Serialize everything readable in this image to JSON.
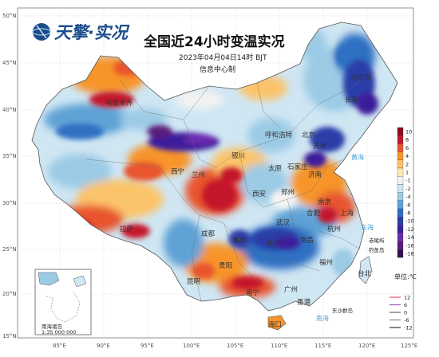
{
  "header": {
    "logo_text": "天擎·实况",
    "title": "全国近24小时变温实况",
    "datetime": "2023年04月04日14时 BJT",
    "issuer": "信息中心制"
  },
  "axes": {
    "lat_labels": [
      "50°N",
      "45°N",
      "40°N",
      "35°N",
      "30°N",
      "25°N",
      "20°N",
      "15°N"
    ],
    "lon_labels": [
      "85°E",
      "90°E",
      "95°E",
      "100°E",
      "105°E",
      "110°E",
      "115°E",
      "120°E",
      "125°E"
    ]
  },
  "legend": {
    "values": [
      "10",
      "8",
      "6",
      "4",
      "2",
      "1",
      "-1",
      "-2",
      "-4",
      "-6",
      "-8",
      "-10",
      "-12",
      "-14",
      "-16",
      "-18"
    ],
    "colors": [
      "#8b0a1f",
      "#c4172a",
      "#e8542e",
      "#f7942c",
      "#fbc46a",
      "#fde9b0",
      "#f3f3f3",
      "#cfe6f3",
      "#9ccbe6",
      "#5fa2d6",
      "#2f6fc2",
      "#2a3ea8",
      "#3d1f9a",
      "#6b2bb0",
      "#5a1a7a",
      "#3a0f4f"
    ],
    "unit": "单位:℃",
    "line_labels": [
      "12",
      "6",
      "0",
      "-6",
      "-12"
    ],
    "line_colors": [
      "#e2556a",
      "#9b59b6",
      "#666666",
      "#888888",
      "#333333"
    ]
  },
  "cities": [
    "哈尔滨",
    "长春",
    "乌鲁木齐",
    "西宁",
    "兰州",
    "银川",
    "呼和浩特",
    "北京",
    "天津",
    "石家庄",
    "太原",
    "济南",
    "西安",
    "郑州",
    "南京",
    "合肥",
    "上海",
    "拉萨",
    "成都",
    "重庆",
    "武汉",
    "杭州",
    "长沙",
    "南昌",
    "福州",
    "贵阳",
    "昆明",
    "南宁",
    "广州",
    "香港",
    "台北",
    "海口"
  ],
  "seas": [
    "黄海",
    "东海",
    "南海"
  ],
  "islands": [
    "赤尾屿",
    "钓鱼岛",
    "东沙群岛",
    "南海诸岛"
  ],
  "inset": {
    "label": "南海诸岛",
    "scale": "1:35 000 000"
  }
}
